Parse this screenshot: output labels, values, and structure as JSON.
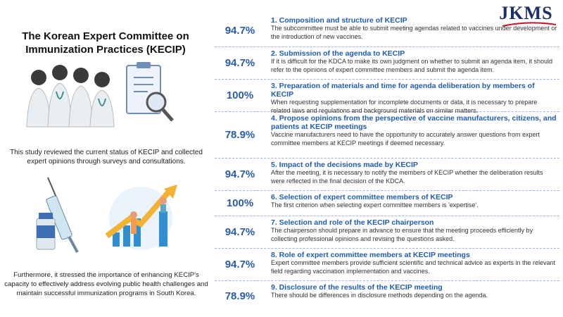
{
  "logo": "JKMS",
  "left": {
    "title": "The Korean Expert Committee on Immunization Practices (KECIP)",
    "paragraph_1": "This study reviewed the current status of KECIP and collected expert opinions through surveys and consultations.",
    "paragraph_2": "Furthermore, it stressed the importance of enhancing KECIP's capacity to effectively address evolving public health challenges and maintain successful immunization programs in South Korea."
  },
  "items": [
    {
      "percent": "94.7%",
      "title": "1. Composition and structure of KECIP",
      "text": "The subcommittee must be able to submit meeting agendas related to vaccines under development or the introduction of new vaccines."
    },
    {
      "percent": "94.7%",
      "title": "2. Submission of the agenda to KECIP",
      "text": "If it is difficult for the KDCA to make its own judgment on whether to submit an agenda item, it should refer to the opinions of expert committee members and submit the agenda item."
    },
    {
      "percent": "100%",
      "title": "3. Preparation of materials and time for agenda deliberation by members of KECIP",
      "text": "When requesting supplementation for incomplete documents or data, it is necessary to prepare related laws and regulations and background materials on similar matters."
    },
    {
      "percent": "78.9%",
      "title": "4. Propose opinions from the perspective of vaccine manufacturers, citizens, and patients at KECIP meetings",
      "text": "Vaccine manufacturers need to have the opportunity to accurately answer questions from expert committee members at KECIP meetings if deemed necessary."
    },
    {
      "percent": "94.7%",
      "title": "5. Impact of the decisions made by KECIP",
      "text": "After the meeting, it is necessary to notify the members of KECIP whether the deliberation results were reflected in the final decision of the KDCA."
    },
    {
      "percent": "100%",
      "title": "6. Selection of expert committee members of KECIP",
      "text": "The first criterion when selecting expert committee members is 'expertise'."
    },
    {
      "percent": "94.7%",
      "title": "7. Selection and role of the KECIP chairperson",
      "text": "The chairperson should prepare in advance to ensure that the meeting proceeds efficiently by collecting professional opinions and revising the questions asked."
    },
    {
      "percent": "94.7%",
      "title": "8. Role of expert committee members at KECIP meetings",
      "text": "Expert committee members provide sufficient scientific and technical advice as experts in the relevant field regarding vaccination implementation and vaccines."
    },
    {
      "percent": "78.9%",
      "title": "9. Disclosure of the results of the KECIP meeting",
      "text": "There should be differences in disclosure methods depending on the agenda."
    }
  ]
}
